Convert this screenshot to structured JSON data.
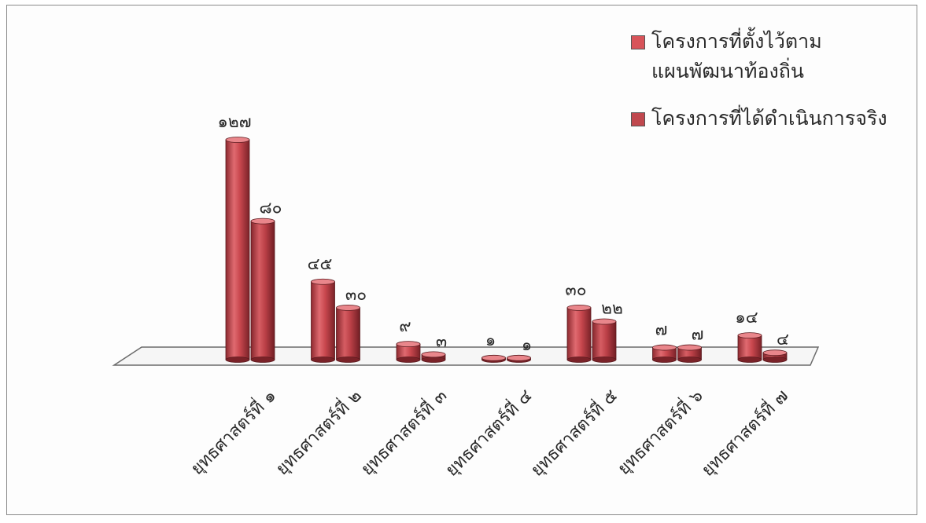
{
  "chart_data": {
    "type": "bar",
    "categories": [
      "ยุทธศาสตร์ที่ ๑",
      "ยุทธศาสตร์ที่ ๒",
      "ยุทธศาสตร์ที่ ๓",
      "ยุทธศาสตร์ที่ ๔",
      "ยุทธศาสตร์ที่ ๕",
      "ยุทธศาสตร์ที่ ๖",
      "ยุทธศาสตร์ที่ ๗"
    ],
    "series": [
      {
        "name": "โครงการที่ตั้งไว้ตามแผนพัฒนาท้องถิ่น",
        "values": [
          127,
          45,
          9,
          1,
          30,
          7,
          14
        ],
        "labels": [
          "๑๒๗",
          "๔๕",
          "๙",
          "๑",
          "๓๐",
          "๗",
          "๑๔"
        ],
        "color": "#d8545a"
      },
      {
        "name": "โครงการที่ได้ดำเนินการจริง",
        "values": [
          80,
          30,
          3,
          1,
          22,
          7,
          4
        ],
        "labels": [
          "๘๐",
          "๓๐",
          "๓",
          "๑",
          "๒๒",
          "๗",
          "๔"
        ],
        "color": "#c0484e"
      }
    ],
    "ylim": [
      0,
      127
    ],
    "grid": false,
    "legend": "top-right",
    "style": "3d-cylinder"
  },
  "legend": {
    "item1_line1": "โครงการที่ตั้งไว้ตาม",
    "item1_line2": "แผนพัฒนาท้องถิ่น",
    "item2": "โครงการที่ได้ดำเนินการจริง"
  }
}
